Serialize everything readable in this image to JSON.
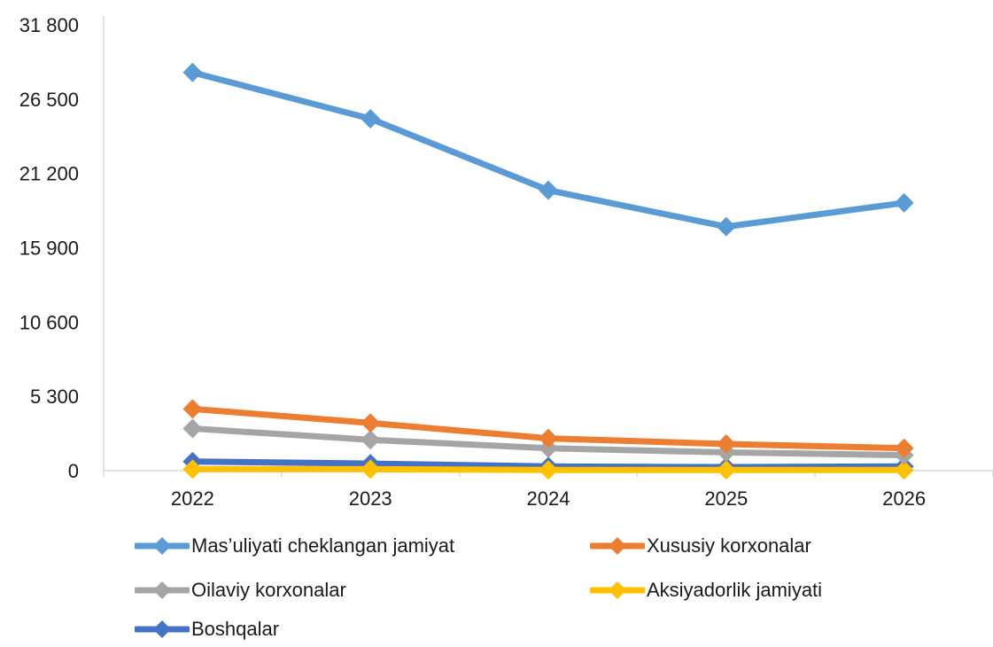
{
  "chart_data": {
    "type": "line",
    "title": "",
    "xlabel": "",
    "ylabel": "",
    "categories": [
      "2022",
      "2023",
      "2024",
      "2025",
      "2026"
    ],
    "ylim": [
      0,
      31800
    ],
    "yticks": [
      0,
      5300,
      10600,
      15900,
      21200,
      26500,
      31800
    ],
    "ytick_labels": [
      "0",
      "5 300",
      "10 600",
      "15 900",
      "21 200",
      "26 500",
      "31 800"
    ],
    "grid": false,
    "legend_position": "bottom",
    "marker": "diamond",
    "series": [
      {
        "name": "Mas’uliyati cheklangan jamiyat",
        "color": "#5b9bd5",
        "values": [
          28400,
          25100,
          20000,
          17400,
          19100
        ]
      },
      {
        "name": "Xususiy korxonalar",
        "color": "#ed7d31",
        "values": [
          4400,
          3400,
          2300,
          1900,
          1600
        ]
      },
      {
        "name": "Oilaviy korxonalar",
        "color": "#a5a5a5",
        "values": [
          3000,
          2200,
          1600,
          1300,
          1100
        ]
      },
      {
        "name": "Aksiyadorlik jamiyati",
        "color": "#ffc000",
        "values": [
          100,
          100,
          50,
          50,
          50
        ]
      },
      {
        "name": "Boshqalar",
        "color": "#4472c4",
        "values": [
          650,
          500,
          300,
          250,
          300
        ]
      }
    ]
  }
}
